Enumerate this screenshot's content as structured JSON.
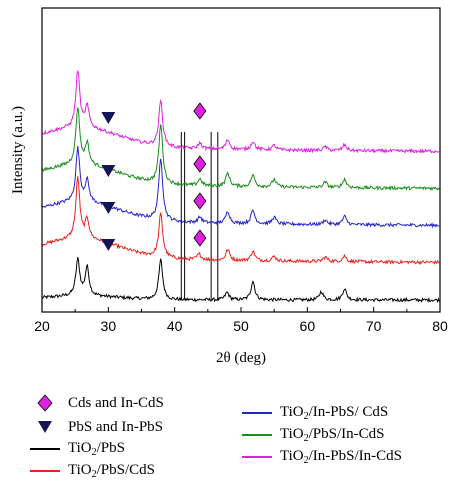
{
  "chart_data": {
    "type": "line",
    "xlabel": "2θ (deg)",
    "ylabel": "Intensity (a.u.)",
    "xlim": [
      20,
      80
    ],
    "x_ticks": [
      20,
      30,
      40,
      50,
      60,
      70,
      80
    ],
    "grid": false,
    "legend_position": "bottom",
    "series": [
      {
        "name": "TiO2/PbS",
        "color": "#000000",
        "offset": 0,
        "peaks": [
          [
            25.4,
            95
          ],
          [
            26.8,
            75
          ],
          [
            37.9,
            105
          ],
          [
            47.9,
            20
          ],
          [
            51.8,
            50
          ],
          [
            62.1,
            22
          ],
          [
            65.6,
            30
          ]
        ]
      },
      {
        "name": "TiO2/PbS/CdS",
        "color": "#e8231c",
        "offset": 1,
        "peaks": [
          [
            25.4,
            160
          ],
          [
            26.8,
            50
          ],
          [
            37.9,
            115
          ],
          [
            43.7,
            15
          ],
          [
            48.0,
            28
          ],
          [
            51.8,
            25
          ],
          [
            55.0,
            12
          ],
          [
            62.7,
            12
          ],
          [
            65.6,
            15
          ]
        ]
      },
      {
        "name": "TiO2/In-PbS/ CdS",
        "color": "#2424c8",
        "offset": 2,
        "peaks": [
          [
            25.4,
            140
          ],
          [
            26.8,
            55
          ],
          [
            37.9,
            165
          ],
          [
            43.8,
            15
          ],
          [
            48.0,
            32
          ],
          [
            51.8,
            35
          ],
          [
            55.0,
            18
          ],
          [
            62.7,
            12
          ],
          [
            65.6,
            22
          ]
        ]
      },
      {
        "name": "TiO2/PbS/In-CdS",
        "color": "#1a8c1a",
        "offset": 3,
        "peaks": [
          [
            25.4,
            150
          ],
          [
            26.8,
            55
          ],
          [
            37.9,
            155
          ],
          [
            43.8,
            18
          ],
          [
            48.0,
            35
          ],
          [
            51.8,
            30
          ],
          [
            55.0,
            20
          ],
          [
            62.7,
            14
          ],
          [
            65.6,
            22
          ]
        ]
      },
      {
        "name": "TiO2/In-PbS/In-CdS",
        "color": "#e020e0",
        "offset": 4,
        "peaks": [
          [
            25.4,
            150
          ],
          [
            26.8,
            55
          ],
          [
            37.9,
            120
          ],
          [
            43.8,
            15
          ],
          [
            48.0,
            25
          ],
          [
            51.8,
            22
          ],
          [
            55.0,
            12
          ],
          [
            62.7,
            10
          ],
          [
            65.6,
            15
          ]
        ]
      }
    ],
    "reference_lines_x": [
      41.0,
      41.5,
      45.5,
      46.5
    ],
    "markers": [
      {
        "label": "PbS and In-PbS",
        "shape": "triangle-down",
        "color": "#14145a",
        "x": 30,
        "on_series": [
          1,
          2,
          3,
          4
        ]
      },
      {
        "label": "Cds and In-CdS",
        "shape": "diamond",
        "color": "#e020e0",
        "x": 43.8,
        "on_series": [
          1,
          2,
          3,
          4
        ]
      }
    ],
    "legend": [
      {
        "label": "Cds and In-CdS",
        "kind": "diamond",
        "color": "#e020e0"
      },
      {
        "label": "PbS and In-PbS",
        "kind": "triangle",
        "color": "#14145a"
      },
      {
        "pre": "TiO",
        "sub": "2",
        "post": "/PbS",
        "kind": "line",
        "color": "#000000"
      },
      {
        "pre": "TiO",
        "sub": "2",
        "post": "/PbS/CdS",
        "kind": "line",
        "color": "#e8231c"
      },
      {
        "pre": "TiO",
        "sub": "2",
        "post": "/In-PbS/ CdS",
        "kind": "line",
        "color": "#2424c8"
      },
      {
        "pre": "TiO",
        "sub": "2",
        "post": "/PbS/In-CdS",
        "kind": "line",
        "color": "#1a8c1a"
      },
      {
        "pre": "TiO",
        "sub": "2",
        "post": "/In-PbS/In-CdS",
        "kind": "line",
        "color": "#e020e0"
      }
    ]
  }
}
